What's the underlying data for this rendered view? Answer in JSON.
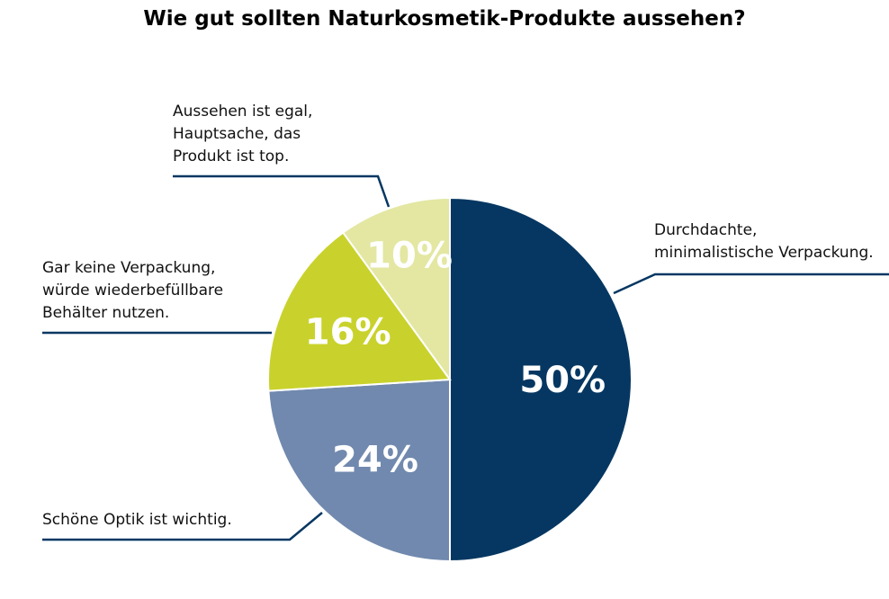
{
  "chart_data": {
    "type": "pie",
    "title": "Wie gut sollten Naturkosmetik-Produkte aussehen?",
    "slices": [
      {
        "label": "Durchdachte,\nminimalistische Verpackung.",
        "value": 50,
        "value_label": "50%",
        "color": "#053762"
      },
      {
        "label": "Schöne Optik ist wichtig.",
        "value": 24,
        "value_label": "24%",
        "color": "#7189ae"
      },
      {
        "label": "Gar keine Verpackung,\nwürde wiederbefüllbare\nBehälter nutzen.",
        "value": 16,
        "value_label": "16%",
        "color": "#c9d22c"
      },
      {
        "label": "Aussehen ist egal,\nHauptsache, das\nProdukt ist top.",
        "value": 10,
        "value_label": "10%",
        "color": "#e3e7a2"
      }
    ],
    "start": "top",
    "direction": "clockwise",
    "leader_line_color": "#053762"
  }
}
